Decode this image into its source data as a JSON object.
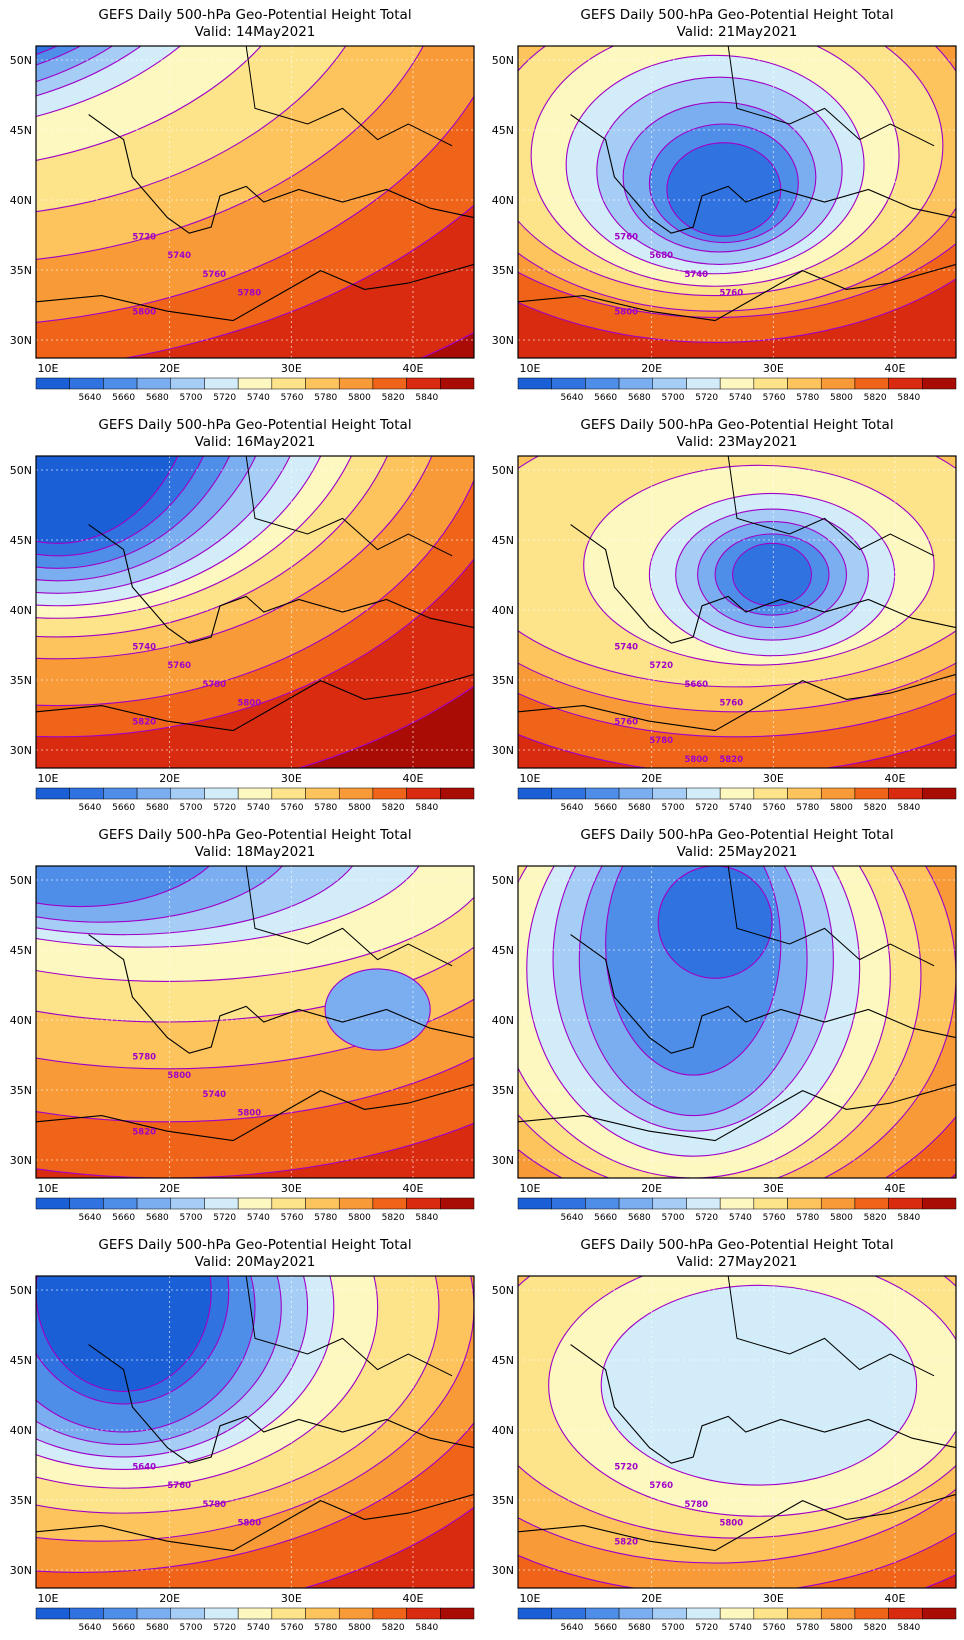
{
  "figure": {
    "title_prefix": "GEFS Daily 500-hPa Geo-Potential Height Total",
    "x_ticks": [
      "10E",
      "20E",
      "30E",
      "40E"
    ],
    "y_ticks": [
      "50N",
      "45N",
      "40N",
      "35N",
      "30N"
    ],
    "colorbar_levels": [
      "5640",
      "5660",
      "5680",
      "5700",
      "5720",
      "5740",
      "5760",
      "5780",
      "5800",
      "5820",
      "5840"
    ],
    "colorbar_colors": [
      "#1a5fd6",
      "#2f72e0",
      "#4f8ee8",
      "#7aaef0",
      "#a6cdf5",
      "#d2ecf9",
      "#fdf7c0",
      "#fde38a",
      "#fdc35c",
      "#f99a38",
      "#ef6419",
      "#d92b0f",
      "#a90c04"
    ],
    "contour_color": "#a000c8"
  },
  "panels": [
    {
      "title": "GEFS Daily 500-hPa Geo-Potential Height Total",
      "valid": "Valid:  14May2021",
      "labels": [
        "5720",
        "5740",
        "5760",
        "5780",
        "5800"
      ]
    },
    {
      "title": "GEFS Daily 500-hPa Geo-Potential Height Total",
      "valid": "Valid:  21May2021",
      "labels": [
        "5760",
        "5680",
        "5740",
        "5760",
        "5800"
      ]
    },
    {
      "title": "GEFS Daily 500-hPa Geo-Potential Height Total",
      "valid": "Valid:  16May2021",
      "labels": [
        "5740",
        "5760",
        "5780",
        "5800",
        "5820"
      ]
    },
    {
      "title": "GEFS Daily 500-hPa Geo-Potential Height Total",
      "valid": "Valid:  23May2021",
      "labels": [
        "5740",
        "5720",
        "5660",
        "5760",
        "5760",
        "5780",
        "5800",
        "5820"
      ]
    },
    {
      "title": "GEFS Daily 500-hPa Geo-Potential Height Total",
      "valid": "Valid:  18May2021",
      "labels": [
        "5780",
        "5800",
        "5740",
        "5800",
        "5820"
      ]
    },
    {
      "title": "GEFS Daily 500-hPa Geo-Potential Height Total",
      "valid": "Valid:  25May2021",
      "labels": []
    },
    {
      "title": "GEFS Daily 500-hPa Geo-Potential Height Total",
      "valid": "Valid:  20May2021",
      "labels": [
        "5640",
        "5760",
        "5780",
        "5800"
      ]
    },
    {
      "title": "GEFS Daily 500-hPa Geo-Potential Height Total",
      "valid": "Valid:  27May2021",
      "labels": [
        "5720",
        "5760",
        "5780",
        "5800",
        "5820"
      ]
    }
  ]
}
